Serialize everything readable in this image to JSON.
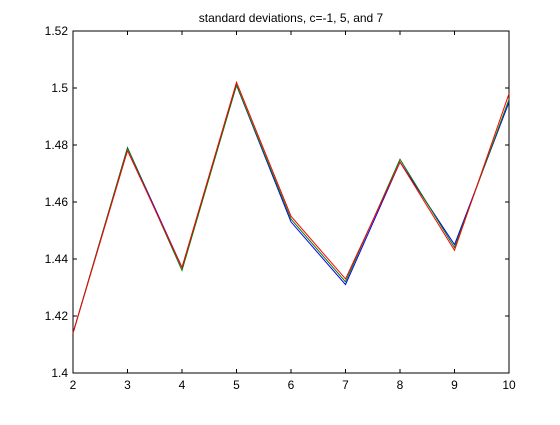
{
  "chart_data": {
    "type": "line",
    "title": "standard deviations, c=-1, 5, and 7",
    "xlabel": "",
    "ylabel": "",
    "xlim": [
      2,
      10
    ],
    "ylim": [
      1.4,
      1.52
    ],
    "xticks": [
      2,
      3,
      4,
      5,
      6,
      7,
      8,
      9,
      10
    ],
    "yticks": [
      1.4,
      1.42,
      1.44,
      1.46,
      1.48,
      1.5,
      1.52
    ],
    "grid": false,
    "legend": "none",
    "x": [
      2,
      3,
      4,
      5,
      6,
      7,
      8,
      9,
      10
    ],
    "series": [
      {
        "color": "#0000ff",
        "values": [
          1.414,
          1.479,
          1.437,
          1.501,
          1.453,
          1.431,
          1.474,
          1.445,
          1.495
        ]
      },
      {
        "color": "#008000",
        "values": [
          1.414,
          1.479,
          1.436,
          1.501,
          1.454,
          1.432,
          1.475,
          1.444,
          1.496
        ]
      },
      {
        "color": "#ff0000",
        "values": [
          1.414,
          1.478,
          1.437,
          1.502,
          1.455,
          1.433,
          1.474,
          1.443,
          1.498
        ]
      }
    ]
  }
}
